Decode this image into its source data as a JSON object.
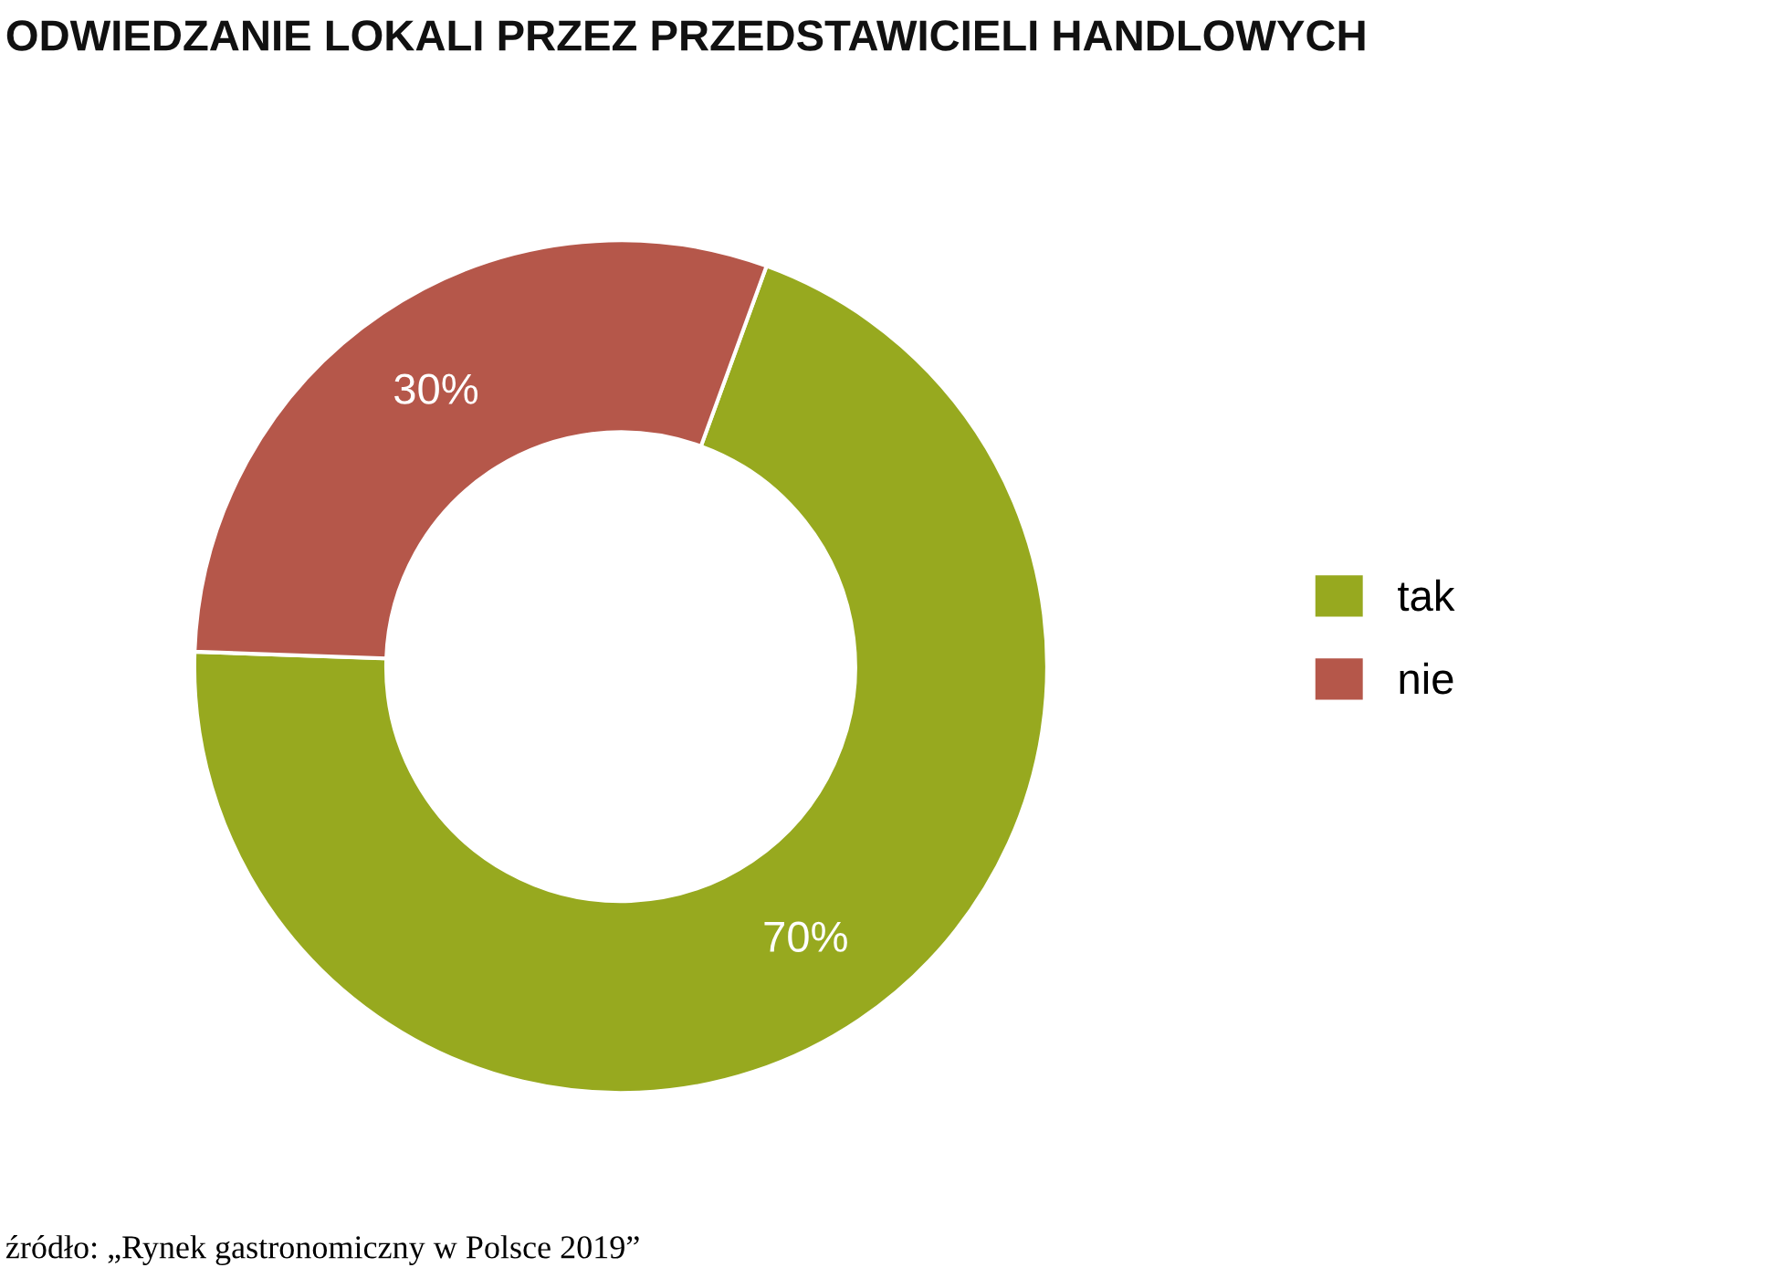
{
  "chart_data": {
    "type": "donut",
    "title": "ODWIEDZANIE LOKALI PRZEZ PRZEDSTAWICIELI HANDLOWYCH",
    "categories": [
      "tak",
      "nie"
    ],
    "values": [
      70,
      30
    ],
    "colors": [
      "#97a91f",
      "#b5574a"
    ],
    "value_labels": [
      "70%",
      "30%"
    ],
    "legend": "right",
    "annotations": [
      "źródło: „Rynek gastronomiczny w Polsce 2019”"
    ]
  }
}
